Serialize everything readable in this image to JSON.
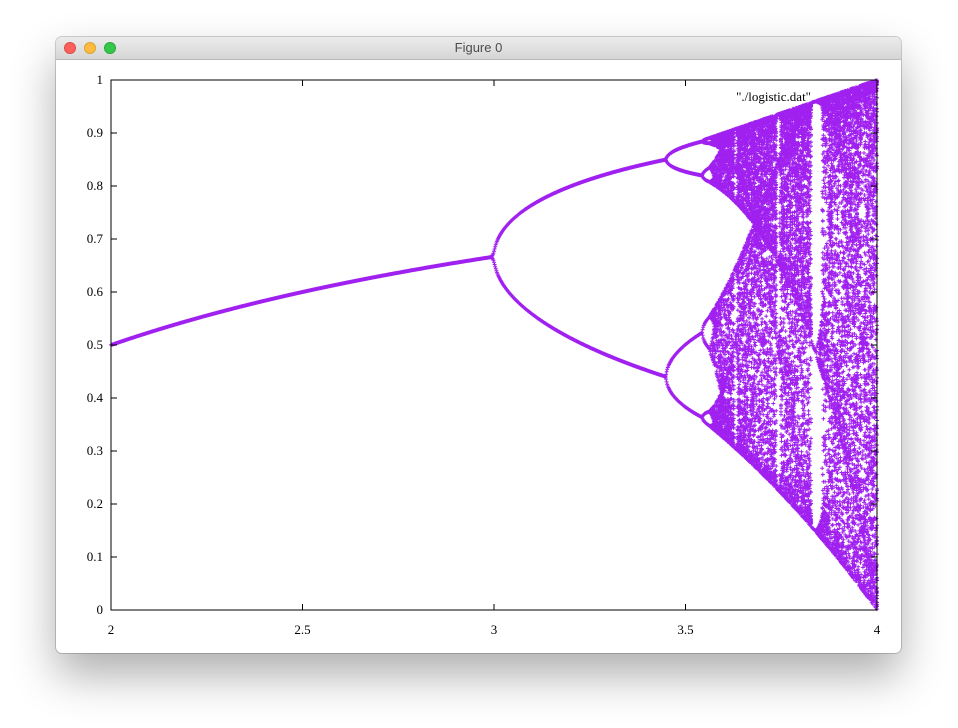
{
  "window": {
    "title": "Figure 0"
  },
  "chart_data": {
    "type": "scatter",
    "title": "",
    "xlabel": "",
    "ylabel": "",
    "xlim": [
      2,
      4
    ],
    "ylim": [
      0,
      1
    ],
    "x_ticks": [
      "2",
      "2.5",
      "3",
      "3.5",
      "4"
    ],
    "y_ticks": [
      "0",
      "0.1",
      "0.2",
      "0.3",
      "0.4",
      "0.5",
      "0.6",
      "0.7",
      "0.8",
      "0.9",
      "1"
    ],
    "grid": false,
    "legend_position": "top-right",
    "series": [
      {
        "name": "\"./logistic.dat\"",
        "color": "#a020f0",
        "marker": "plus",
        "x_range": [
          2,
          4
        ],
        "description_source": "long-run iterates of x(n+1) = r x(n) (1 - x(n)) for r from 2 to 4",
        "sample_points": [
          {
            "x": 2.0,
            "y": 0.5
          },
          {
            "x": 2.5,
            "y": 0.6
          },
          {
            "x": 3.0,
            "y": 0.667
          },
          {
            "x": 3.2,
            "y": 0.513
          },
          {
            "x": 3.2,
            "y": 0.799
          },
          {
            "x": 3.45,
            "y": 0.44
          },
          {
            "x": 3.45,
            "y": 0.85
          },
          {
            "x": 3.5,
            "y": 0.383
          },
          {
            "x": 3.5,
            "y": 0.501
          },
          {
            "x": 3.5,
            "y": 0.827
          },
          {
            "x": 3.5,
            "y": 0.875
          },
          {
            "x": 3.83,
            "y": 0.156
          },
          {
            "x": 3.83,
            "y": 0.505
          },
          {
            "x": 3.83,
            "y": 0.957
          },
          {
            "x": 4.0,
            "y": 0.0
          },
          {
            "x": 4.0,
            "y": 1.0
          }
        ]
      }
    ]
  }
}
